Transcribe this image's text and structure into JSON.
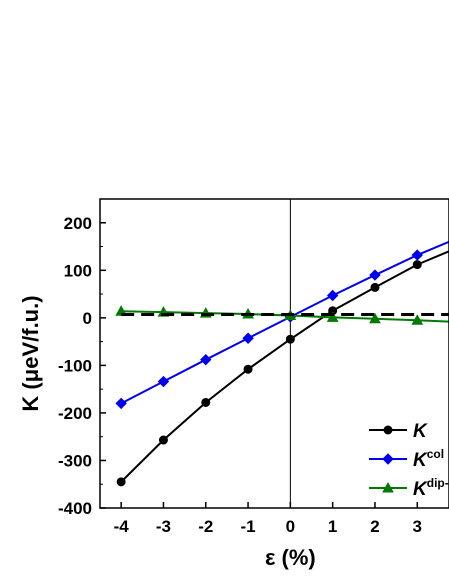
{
  "chart_data": {
    "type": "line",
    "title": "",
    "xlabel": "ε (%)",
    "ylabel": "K (μeV/f.u.)",
    "xlim": [
      -4.5,
      3.75
    ],
    "ylim": [
      -400,
      250
    ],
    "x_ticks": [
      "-4",
      "-3",
      "-2",
      "-1",
      "0",
      "1",
      "2",
      "3"
    ],
    "y_ticks": [
      "-400",
      "-300",
      "-200",
      "-100",
      "0",
      "100",
      "200"
    ],
    "grid": false,
    "legend_position": "bottom-right",
    "zero_line": {
      "x": 0,
      "color": "#000000"
    },
    "series": [
      {
        "name": "K",
        "name_base": "K",
        "name_sup": "",
        "color": "#000000",
        "marker": "circle",
        "line_style": "solid",
        "x": [
          -4,
          -3,
          -2,
          -1,
          0,
          1,
          2,
          3,
          3.75
        ],
        "values": [
          -345,
          -257,
          -178,
          -108,
          -45,
          15,
          64,
          112,
          140
        ]
      },
      {
        "name": "Kcol",
        "name_base": "K",
        "name_sup": "col",
        "color": "#0000ee",
        "marker": "diamond",
        "line_style": "solid",
        "x": [
          -4,
          -3,
          -2,
          -1,
          0,
          1,
          2,
          3,
          3.75
        ],
        "values": [
          -180,
          -134,
          -88,
          -43,
          2,
          47,
          90,
          132,
          160
        ]
      },
      {
        "name": "Kdip-",
        "name_base": "K",
        "name_sup": "dip-",
        "color": "#007a00",
        "marker": "triangle",
        "line_style": "solid",
        "x": [
          -4,
          -3,
          -2,
          -1,
          0,
          1,
          2,
          3,
          3.75
        ],
        "values": [
          14,
          12,
          10,
          8,
          5,
          1,
          -2,
          -5,
          -8
        ]
      },
      {
        "name": "",
        "color": "#000000",
        "marker": "none",
        "line_style": "dashed",
        "x": [
          -4,
          3.75
        ],
        "values": [
          7,
          7
        ]
      }
    ]
  }
}
